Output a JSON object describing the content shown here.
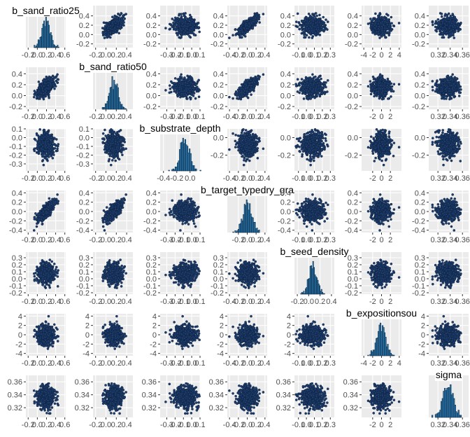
{
  "chart_data": {
    "type": "pairs",
    "subtype": "scatter-matrix with diagonal histograms",
    "parameters": [
      "b_sand_ratio25",
      "b_sand_ratio50",
      "b_substrate_depth",
      "b_target_typedry_gra",
      "b_seed_density",
      "b_expositionsou",
      "sigma"
    ],
    "titles": [
      "b_sand_ratio25",
      "b_sand_ratio50",
      "b_substrate_depth",
      "b_target_typedry_gra",
      "b_seed_density",
      "b_expositionsou",
      "sigma"
    ],
    "distributions": [
      {
        "mean": 0.18,
        "sd": 0.09
      },
      {
        "mean": 0.15,
        "sd": 0.08
      },
      {
        "mean": -0.08,
        "sd": 0.07
      },
      {
        "mean": 0.0,
        "sd": 0.1
      },
      {
        "mean": 0.07,
        "sd": 0.07
      },
      {
        "mean": -0.1,
        "sd": 1.0
      },
      {
        "mean": 0.336,
        "sd": 0.008
      }
    ],
    "correlations": [
      {
        "a": 0,
        "b": 1,
        "r": 0.6
      },
      {
        "a": 0,
        "b": 3,
        "r": 0.6
      },
      {
        "a": 1,
        "b": 3,
        "r": 0.6
      }
    ],
    "x_axes": [
      {
        "lim": [
          -0.25,
          0.62
        ],
        "ticks": [
          "-0.2",
          "0.0",
          "0.2",
          "0.4",
          "0.6"
        ],
        "tick_values": [
          -0.2,
          0.0,
          0.2,
          0.4,
          0.6
        ]
      },
      {
        "lim": [
          -0.25,
          0.52
        ],
        "ticks": [
          "-0.2",
          "0.0",
          "0.2",
          "0.4"
        ],
        "tick_values": [
          -0.2,
          0.0,
          0.2,
          0.4
        ]
      },
      {
        "lim": [
          -0.38,
          0.1
        ],
        "ticks": [
          "-0.3",
          "-0.2",
          "-0.1",
          "0.0",
          "0.1"
        ],
        "tick_values": [
          -0.3,
          -0.2,
          -0.1,
          0.0,
          0.1
        ]
      },
      {
        "lim": [
          -0.45,
          0.45
        ],
        "ticks": [
          "-0.4",
          "-0.2",
          "0.0",
          "0.2",
          "0.4"
        ],
        "tick_values": [
          -0.4,
          -0.2,
          0.0,
          0.2,
          0.4
        ]
      },
      {
        "lim": [
          -0.15,
          0.35
        ],
        "ticks": [
          "-0.1",
          "0.0",
          "0.1",
          "0.2",
          "0.3"
        ],
        "tick_values": [
          -0.1,
          0.0,
          0.1,
          0.2,
          0.3
        ]
      },
      {
        "lim": [
          -4.5,
          4.5
        ],
        "ticks": [
          "-4",
          "-2",
          "0",
          "2",
          "4"
        ],
        "tick_values": [
          -4,
          -2,
          0,
          2,
          4
        ]
      },
      {
        "lim": [
          0.305,
          0.37
        ],
        "ticks": [
          "0.32",
          "0.34",
          "0.36"
        ],
        "tick_values": [
          0.32,
          0.34,
          0.36
        ]
      }
    ],
    "diag_x_axes": [
      {
        "lim": [
          -0.25,
          0.62
        ],
        "ticks": [
          "-0.2",
          "0.0",
          "0.2",
          "0.4",
          "0.6"
        ],
        "tick_values": [
          -0.2,
          0.0,
          0.2,
          0.4,
          0.6
        ]
      },
      {
        "lim": [
          -0.25,
          0.52
        ],
        "ticks": [
          "-0.2",
          "0.0",
          "0.2",
          "0.4"
        ],
        "tick_values": [
          -0.2,
          0.0,
          0.2,
          0.4
        ]
      },
      {
        "lim": [
          -0.45,
          0.15
        ],
        "ticks": [
          "-0.4",
          "-0.2",
          "0.0"
        ],
        "tick_values": [
          -0.4,
          -0.2,
          0.0
        ]
      },
      {
        "lim": [
          -0.45,
          0.45
        ],
        "ticks": [
          "-0.2",
          "0.0",
          "0.2",
          "0.4"
        ],
        "tick_values": [
          -0.2,
          0.0,
          0.2,
          0.4
        ]
      },
      {
        "lim": [
          -0.25,
          0.45
        ],
        "ticks": [
          "-0.2",
          "0.0",
          "0.2",
          "0.4"
        ],
        "tick_values": [
          -0.2,
          0.0,
          0.2,
          0.4
        ]
      },
      {
        "lim": [
          -4.5,
          4.5
        ],
        "ticks": [
          "-4",
          "-2",
          "0",
          "2",
          "4"
        ],
        "tick_values": [
          -4,
          -2,
          0,
          2,
          4
        ]
      },
      {
        "lim": [
          0.305,
          0.37
        ],
        "ticks": [
          "0.32",
          "0.34",
          "0.36"
        ],
        "tick_values": [
          0.32,
          0.34,
          0.36
        ]
      }
    ],
    "y_axes": [
      {
        "lim": [
          -0.28,
          0.62
        ],
        "ticks": [
          "-0.2",
          "0.0",
          "0.2",
          "0.4"
        ],
        "tick_values": [
          -0.2,
          0.0,
          0.2,
          0.4
        ]
      },
      {
        "lim": [
          -0.25,
          0.52
        ],
        "ticks": [
          "-0.2",
          "0.0",
          "0.2",
          "0.4"
        ],
        "tick_values": [
          -0.2,
          0.0,
          0.2,
          0.4
        ]
      },
      {
        "lim": [
          -0.38,
          0.1
        ],
        "ticks": [
          "-0.3",
          "-0.2",
          "-0.1",
          "0.0",
          "0.1"
        ],
        "tick_values": [
          -0.3,
          -0.2,
          -0.1,
          0.0,
          0.1
        ]
      },
      {
        "lim": [
          -0.45,
          0.45
        ],
        "ticks": [
          "-0.4",
          "-0.2",
          "0.0",
          "0.2",
          "0.4"
        ],
        "tick_values": [
          -0.4,
          -0.2,
          0.0,
          0.2,
          0.4
        ]
      },
      {
        "lim": [
          -0.22,
          0.38
        ],
        "ticks": [
          "-0.2",
          "-0.1",
          "0.0",
          "0.1",
          "0.2",
          "0.3"
        ],
        "tick_values": [
          -0.2,
          -0.1,
          0.0,
          0.1,
          0.2,
          0.3
        ]
      },
      {
        "lim": [
          -4.5,
          4.5
        ],
        "ticks": [
          "-4",
          "-2",
          "0",
          "2",
          "4"
        ],
        "tick_values": [
          -4,
          -2,
          0,
          2,
          4
        ]
      },
      {
        "lim": [
          0.305,
          0.37
        ],
        "ticks": [
          "0.32",
          "0.34",
          "0.36"
        ],
        "tick_values": [
          0.32,
          0.34,
          0.36
        ]
      }
    ],
    "x_axis_variants": {
      "1": {
        "ticks": [
          "-0.2",
          "0.0",
          "0.2",
          "0.4"
        ],
        "tick_values": [
          -0.2,
          0.0,
          0.2,
          0.4
        ]
      },
      "4": {
        "ticks": [
          "-0.1",
          "0.0",
          "0.1",
          "0.2",
          "0.3"
        ],
        "tick_values": [
          -0.1,
          0.0,
          0.1,
          0.2,
          0.3
        ]
      },
      "5": {
        "ticks": [
          "-2",
          "0",
          "2"
        ],
        "tick_values": [
          -2,
          0,
          2
        ]
      }
    },
    "y_axis_variants": {
      "2": {
        "ticks": [
          "-0.4",
          "-0.2",
          "0.0"
        ],
        "tick_values": [
          -0.4,
          -0.2,
          0.0
        ]
      },
      "3": {
        "ticks": [
          "-0.4",
          "-0.2",
          "0.0",
          "0.2",
          "0.4"
        ],
        "tick_values": [
          -0.4,
          -0.2,
          0.0,
          0.2,
          0.4
        ]
      }
    },
    "points_per_panel": 500,
    "histogram_bins": 30,
    "grid": true,
    "colors": {
      "panel_background": "#ebebeb",
      "grid_major": "#ffffff",
      "point_fill": "#1f3d6b",
      "point_stroke": "#0a1e3c",
      "bar_fill": "#2f7bb0",
      "bar_stroke": "#0d2f4d",
      "tick_text": "#4d4d4d",
      "title_text": "#000000"
    }
  }
}
